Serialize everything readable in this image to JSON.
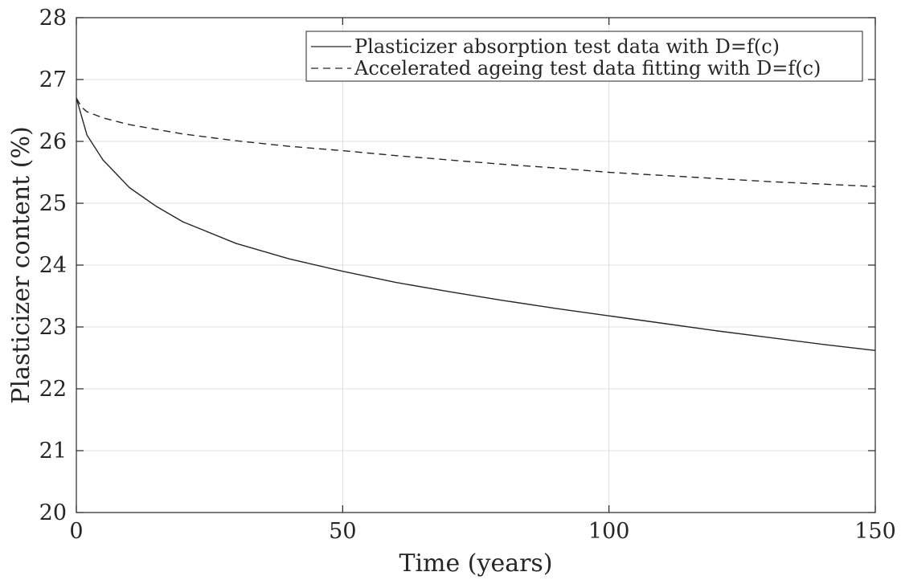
{
  "chart_data": {
    "type": "line",
    "title": "",
    "xlabel": "Time (years)",
    "ylabel": "Plasticizer content (%)",
    "xlim": [
      0,
      150
    ],
    "ylim": [
      20,
      28
    ],
    "xticks": [
      0,
      50,
      100,
      150
    ],
    "yticks": [
      20,
      21,
      22,
      23,
      24,
      25,
      26,
      27,
      28
    ],
    "xtick_labels": [
      "0",
      "50",
      "100",
      "150"
    ],
    "ytick_labels": [
      "20",
      "21",
      "22",
      "23",
      "24",
      "25",
      "26",
      "27",
      "28"
    ],
    "grid": true,
    "legend_position": "top-right",
    "series": [
      {
        "name": "Plasticizer absorption test data with D=f(c)",
        "line_style": "solid",
        "color": "#262626",
        "x": [
          0,
          1,
          2,
          5,
          10,
          15,
          20,
          30,
          40,
          50,
          60,
          70,
          80,
          90,
          100,
          110,
          120,
          130,
          140,
          150
        ],
        "y": [
          26.7,
          26.4,
          26.1,
          25.7,
          25.25,
          24.95,
          24.7,
          24.35,
          24.1,
          23.9,
          23.72,
          23.57,
          23.43,
          23.3,
          23.18,
          23.06,
          22.94,
          22.83,
          22.72,
          22.62
        ]
      },
      {
        "name": "Accelerated ageing test data fitting with D=f(c)",
        "line_style": "dashed",
        "color": "#262626",
        "x": [
          0,
          1,
          2,
          5,
          10,
          20,
          30,
          40,
          50,
          60,
          70,
          80,
          90,
          100,
          110,
          120,
          130,
          140,
          150
        ],
        "y": [
          26.7,
          26.55,
          26.48,
          26.38,
          26.27,
          26.12,
          26.01,
          25.92,
          25.85,
          25.77,
          25.7,
          25.63,
          25.57,
          25.5,
          25.45,
          25.4,
          25.35,
          25.31,
          25.27
        ]
      }
    ]
  }
}
